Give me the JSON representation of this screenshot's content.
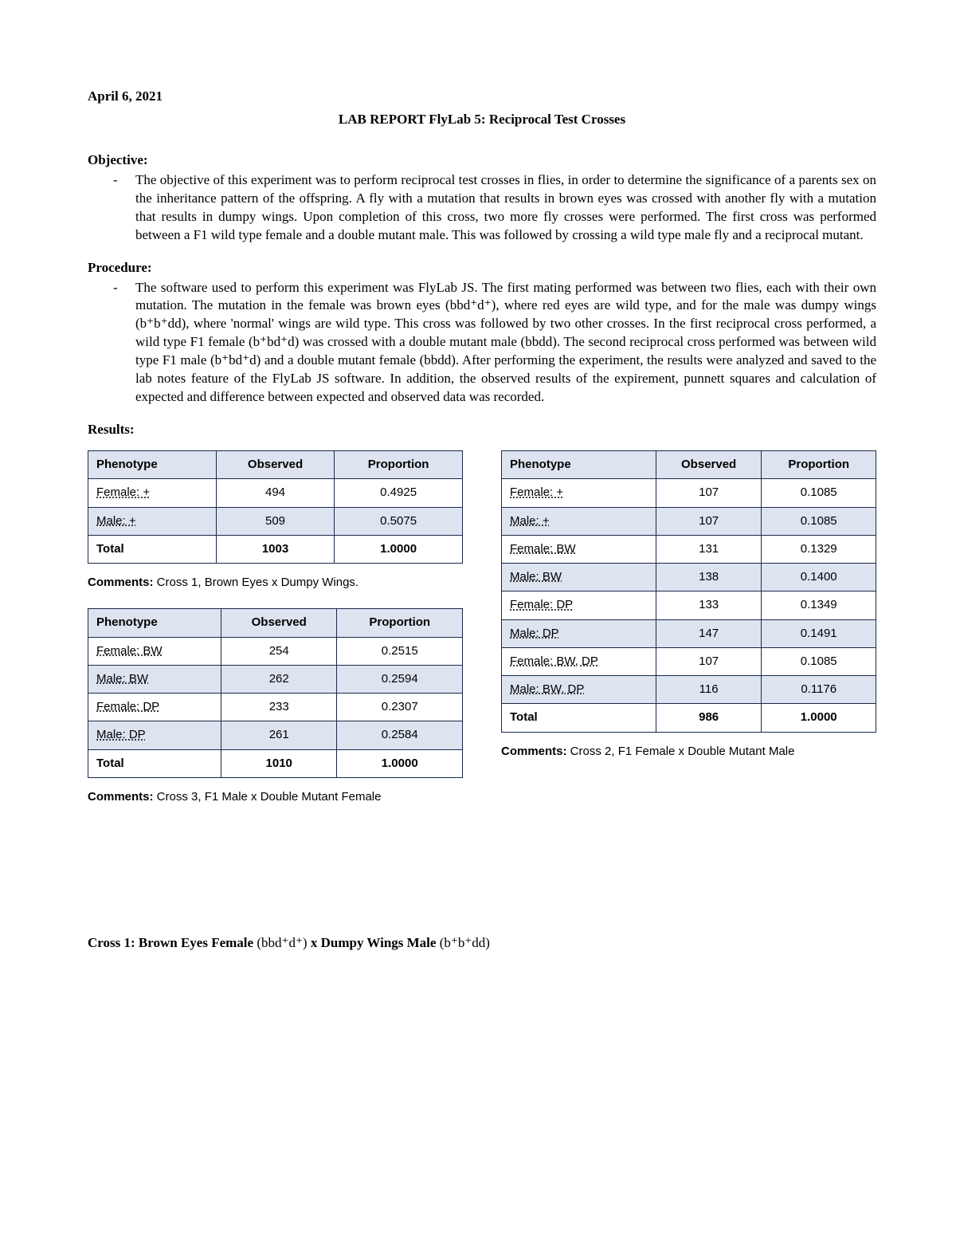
{
  "date": "April 6, 2021",
  "title": "LAB REPORT FlyLab 5: Reciprocal Test Crosses",
  "headings": {
    "objective": "Objective:",
    "procedure": "Procedure:",
    "results": "Results:"
  },
  "bullet_dash": "-",
  "objective_text": "The objective of this experiment was to perform reciprocal test crosses in flies, in order to determine the significance of a parents sex on the inheritance pattern of the offspring. A fly with a mutation that results in brown eyes was crossed with another fly with a mutation that results in dumpy wings. Upon completion of this cross, two more fly crosses were performed. The first cross was performed between a F1 wild type female and a double mutant male. This was followed by crossing a wild type male fly and a reciprocal mutant.",
  "procedure_text": "The software used to perform this experiment was FlyLab JS. The first mating performed was between two flies, each with their own mutation. The mutation in the female was brown eyes (bbd⁺d⁺), where red eyes are wild type, and for the male was dumpy wings (b⁺b⁺dd), where 'normal' wings are wild type. This cross was followed by two other crosses. In the first reciprocal cross performed, a wild type F1 female (b⁺bd⁺d) was crossed with a double mutant male (bbdd). The second reciprocal cross performed was between wild type F1 male (b⁺bd⁺d) and a double mutant female (bbdd). After performing the experiment, the results were analyzed and saved to the lab notes feature of the FlyLab JS software. In addition, the observed results of the expirement, punnett squares and calculation of expected and difference between expected and observed data was recorded.",
  "table_headers": {
    "phenotype": "Phenotype",
    "observed": "Observed",
    "proportion": "Proportion",
    "total": "Total"
  },
  "comments_label": "Comments:",
  "table1": {
    "rows": [
      {
        "phenotype": "Female: +",
        "observed": "494",
        "proportion": "0.4925",
        "shade": false
      },
      {
        "phenotype": "Male: +",
        "observed": "509",
        "proportion": "0.5075",
        "shade": true
      }
    ],
    "total_observed": "1003",
    "total_proportion": "1.0000",
    "comment": " Cross 1, Brown Eyes x Dumpy Wings."
  },
  "table2": {
    "rows": [
      {
        "phenotype": "Female: +",
        "observed": "107",
        "proportion": "0.1085",
        "shade": false
      },
      {
        "phenotype": "Male: +",
        "observed": "107",
        "proportion": "0.1085",
        "shade": true
      },
      {
        "phenotype": "Female: BW",
        "observed": "131",
        "proportion": "0.1329",
        "shade": false
      },
      {
        "phenotype": "Male: BW",
        "observed": "138",
        "proportion": "0.1400",
        "shade": true
      },
      {
        "phenotype": "Female: DP",
        "observed": "133",
        "proportion": "0.1349",
        "shade": false
      },
      {
        "phenotype": "Male: DP",
        "observed": "147",
        "proportion": "0.1491",
        "shade": true
      },
      {
        "phenotype": "Female: BW, DP",
        "observed": "107",
        "proportion": "0.1085",
        "shade": false
      },
      {
        "phenotype": "Male: BW, DP",
        "observed": "116",
        "proportion": "0.1176",
        "shade": true
      }
    ],
    "total_observed": "986",
    "total_proportion": "1.0000",
    "comment": " Cross 2, F1 Female x Double Mutant Male"
  },
  "table3": {
    "rows": [
      {
        "phenotype": "Female: BW",
        "observed": "254",
        "proportion": "0.2515",
        "shade": false
      },
      {
        "phenotype": "Male: BW",
        "observed": "262",
        "proportion": "0.2594",
        "shade": true
      },
      {
        "phenotype": "Female: DP",
        "observed": "233",
        "proportion": "0.2307",
        "shade": false
      },
      {
        "phenotype": "Male: DP",
        "observed": "261",
        "proportion": "0.2584",
        "shade": true
      }
    ],
    "total_observed": "1010",
    "total_proportion": "1.0000",
    "comment": " Cross 3, F1 Male x Double Mutant Female"
  },
  "cross1": {
    "prefix": "Cross 1: Brown Eyes Female ",
    "geno1": "(bbd⁺d⁺)",
    "mid": " x Dumpy Wings Male ",
    "geno2": "(b⁺b⁺dd)"
  }
}
